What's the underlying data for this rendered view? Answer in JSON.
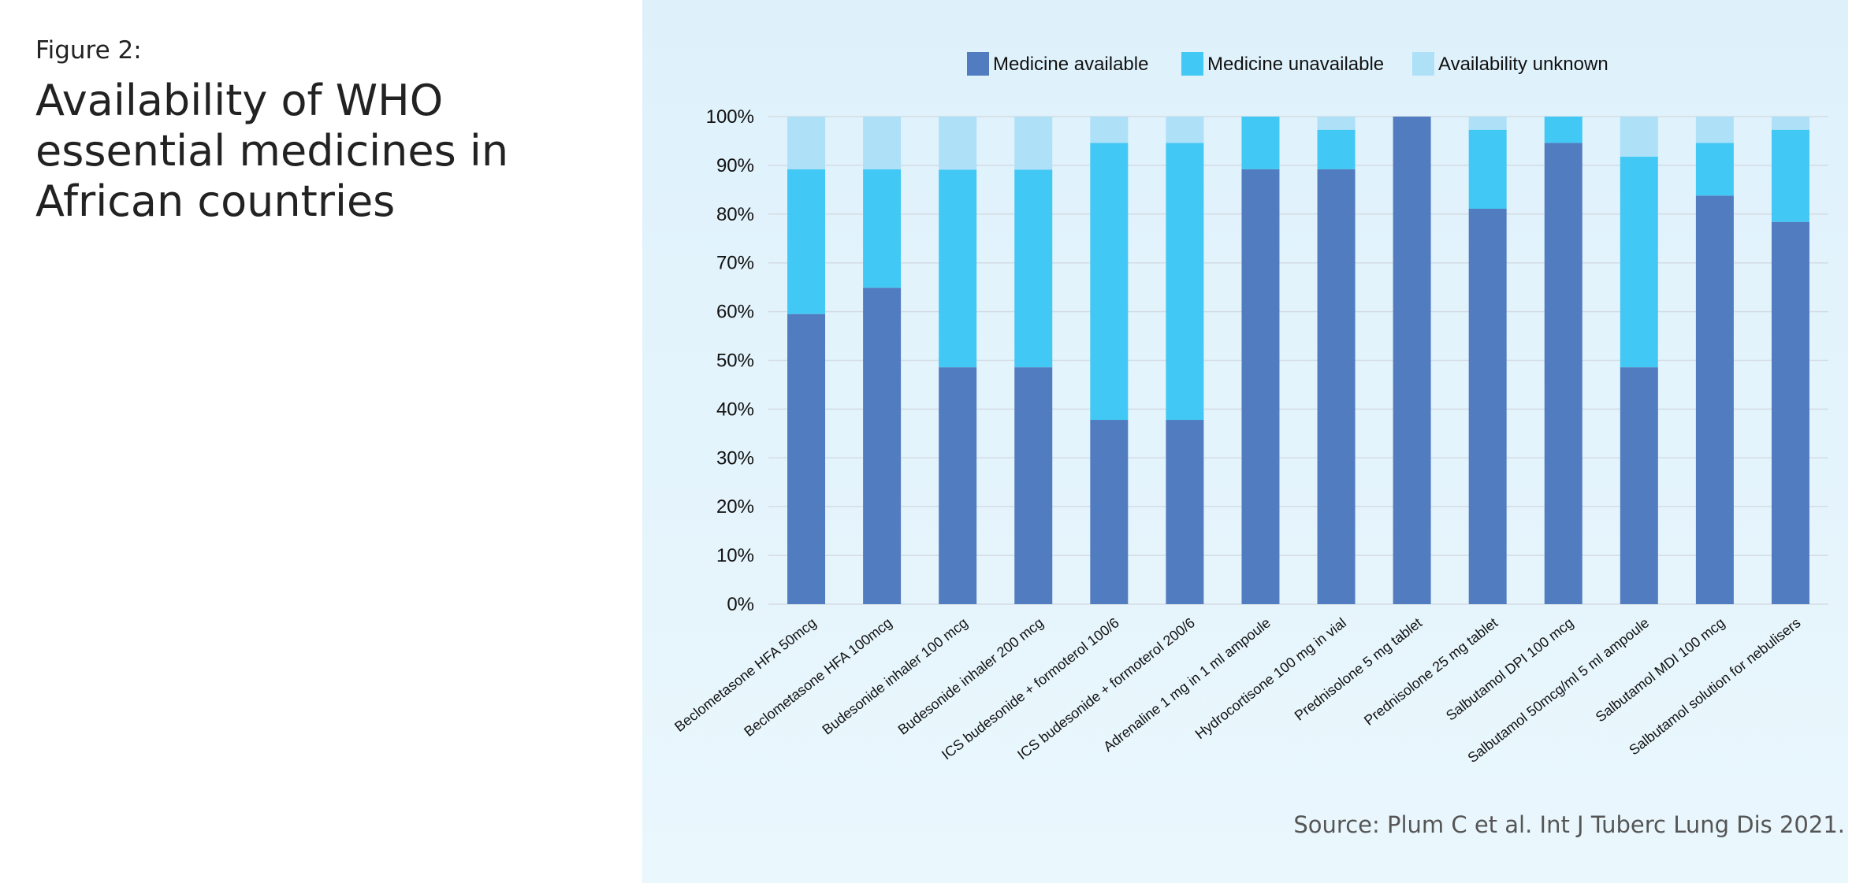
{
  "figure": {
    "label": "Figure 2:",
    "title": "Availability of WHO essential medicines in African countries",
    "source": "Source: Plum C et al. Int J Tuberc Lung Dis 2021."
  },
  "colors": {
    "available": "#527cc0",
    "unavailable": "#42c8f4",
    "unknown": "#aee0f8",
    "grid": "#d4dbe3",
    "panel_background": "#e3f4fc"
  },
  "chart_data": {
    "type": "bar",
    "stacked": true,
    "title": "",
    "xlabel": "",
    "ylabel": "",
    "ylim": [
      0,
      100
    ],
    "yticks": [
      "0%",
      "10%",
      "20%",
      "30%",
      "40%",
      "50%",
      "60%",
      "70%",
      "80%",
      "90%",
      "100%"
    ],
    "grid": true,
    "legend_position": "top",
    "categories": [
      "Beclometasone HFA 50mcg",
      "Beclometasone HFA 100mcg",
      "Budesonide inhaler 100 mcg",
      "Budesonide inhaler 200 mcg",
      "ICS budesonide + formoterol 100/6",
      "ICS budesonide + formoterol 200/6",
      "Adrenaline 1 mg in 1 ml ampoule",
      "Hydrocortisone 100 mg in vial",
      "Prednisolone 5 mg tablet",
      "Prednisolone 25 mg tablet",
      "Salbutamol DPI 100 mcg",
      "Salbutamol 50mcg/ml 5 ml ampoule",
      "Salbutamol MDI 100 mcg",
      "Salbutamol solution for nebulisers"
    ],
    "series": [
      {
        "name": "Medicine available",
        "values": [
          59.5,
          64.9,
          48.6,
          48.6,
          37.8,
          37.8,
          89.2,
          89.2,
          100,
          81.1,
          94.6,
          48.6,
          83.8,
          78.4
        ]
      },
      {
        "name": "Medicine unavailable",
        "values": [
          29.7,
          24.3,
          40.5,
          40.5,
          56.8,
          56.8,
          10.8,
          8.1,
          0,
          16.2,
          5.4,
          43.2,
          10.8,
          18.9
        ]
      },
      {
        "name": "Availability unknown",
        "values": [
          10.8,
          10.8,
          10.9,
          10.9,
          5.4,
          5.4,
          0,
          2.7,
          0,
          2.7,
          0,
          8.2,
          5.4,
          2.7
        ]
      }
    ]
  }
}
